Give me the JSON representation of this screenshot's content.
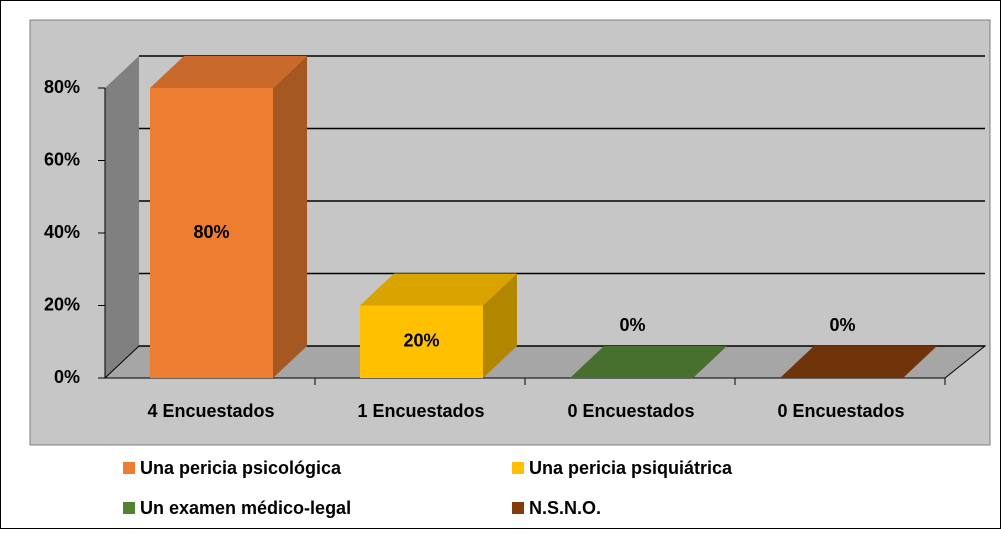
{
  "chart_data": {
    "type": "bar3d",
    "categories": [
      "4 Encuestados",
      "1 Encuestados",
      "0 Encuestados",
      "0 Encuestados"
    ],
    "values": [
      80,
      20,
      0,
      0
    ],
    "value_labels": [
      "80%",
      "20%",
      "0%",
      "0%"
    ],
    "colors": [
      "#ed7d31",
      "#ffc000",
      "#548235",
      "#843c0c"
    ],
    "legend": [
      "Una pericia psicológica",
      "Una pericia psiquiátrica",
      "Un examen médico-legal",
      "N.S.N.O."
    ],
    "ylim": [
      0,
      80
    ],
    "yticks": [
      {
        "value": 0,
        "label": "0%"
      },
      {
        "value": 20,
        "label": "20%"
      },
      {
        "value": 40,
        "label": "40%"
      },
      {
        "value": 60,
        "label": "60%"
      },
      {
        "value": 80,
        "label": "80%"
      }
    ],
    "grid": true
  }
}
